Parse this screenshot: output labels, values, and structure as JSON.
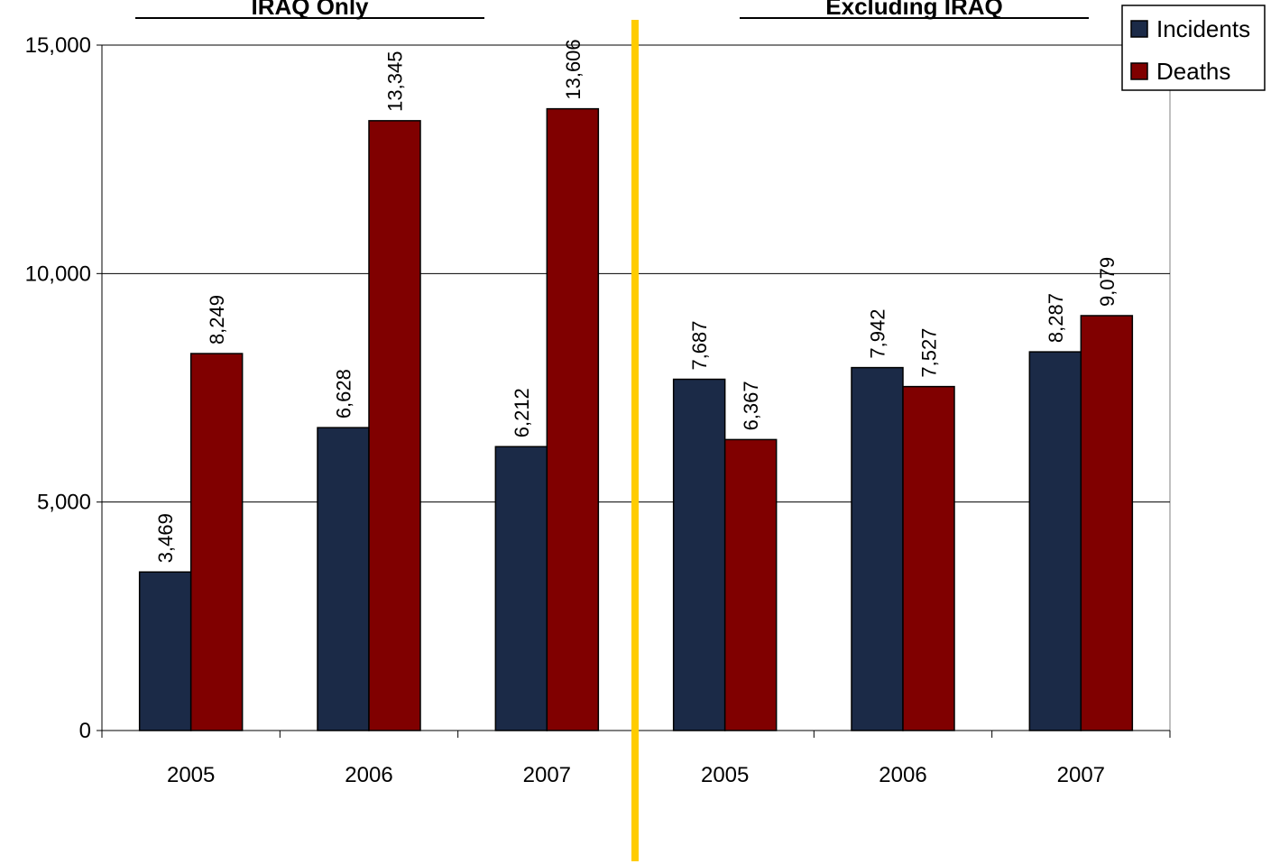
{
  "chart_data": {
    "type": "bar",
    "groups": [
      {
        "title": "IRAQ Only",
        "categories": [
          "2005",
          "2006",
          "2007"
        ]
      },
      {
        "title": "Excluding IRAQ",
        "categories": [
          "2005",
          "2006",
          "2007"
        ]
      }
    ],
    "categories": [
      "2005",
      "2006",
      "2007",
      "2005",
      "2006",
      "2007"
    ],
    "series": [
      {
        "name": "Incidents",
        "color": "#1b2a47",
        "values": [
          3469,
          6628,
          6212,
          7687,
          7942,
          8287
        ]
      },
      {
        "name": "Deaths",
        "color": "#800000",
        "values": [
          8249,
          13345,
          13606,
          6367,
          7527,
          9079
        ]
      }
    ],
    "data_labels": {
      "Incidents": [
        "3,469",
        "6,628",
        "6,212",
        "7,687",
        "7,942",
        "8,287"
      ],
      "Deaths": [
        "8,249",
        "13,345",
        "13,606",
        "6,367",
        "7,527",
        "9,079"
      ]
    },
    "ylim": [
      0,
      15000
    ],
    "yticks": [
      0,
      5000,
      10000,
      15000
    ],
    "ytick_labels": [
      "0",
      "5,000",
      "10,000",
      "15,000"
    ],
    "grid": true,
    "legend": "top-right",
    "divider_color": "#ffcc00",
    "title": "",
    "xlabel": "",
    "ylabel": ""
  }
}
